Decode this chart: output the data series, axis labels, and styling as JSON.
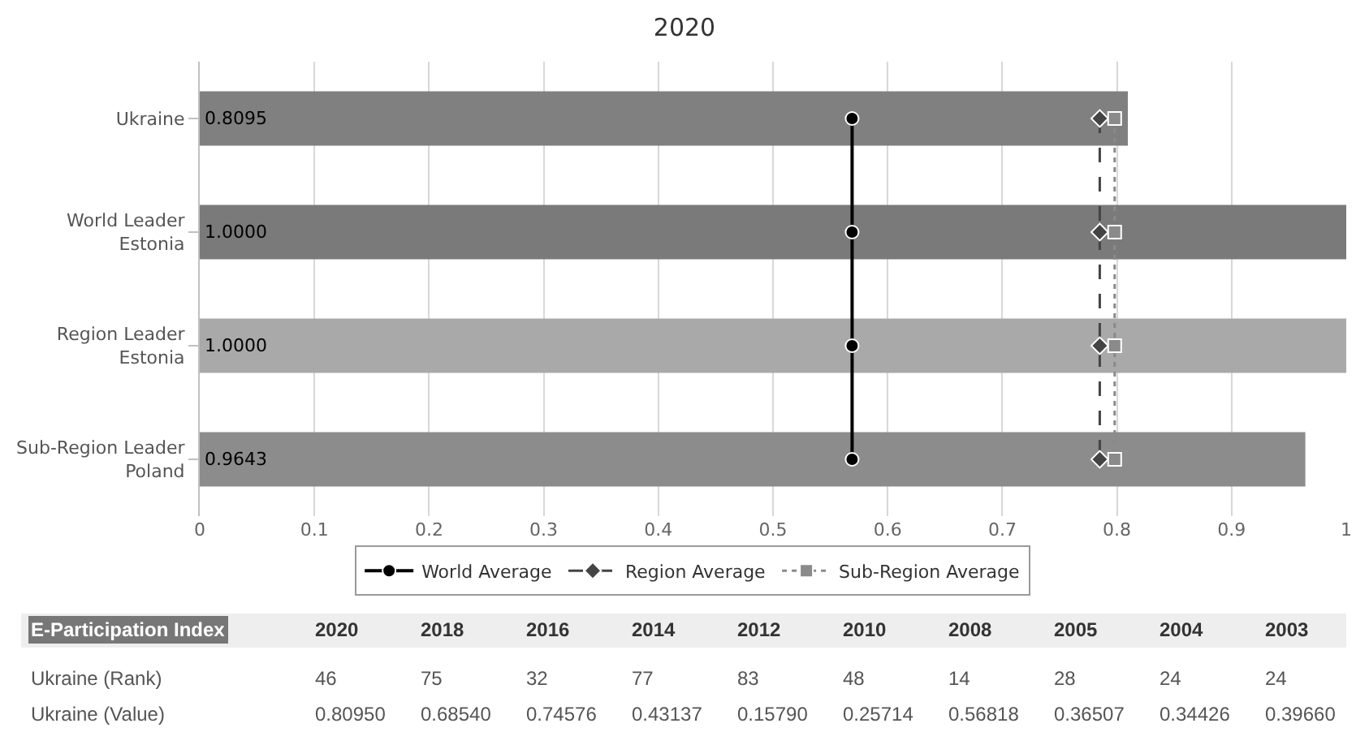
{
  "chart_data": {
    "type": "bar",
    "orientation": "horizontal",
    "title": "2020",
    "categories": [
      "Ukraine",
      "World Leader\nEstonia",
      "Region Leader\nEstonia",
      "Sub-Region Leader\nPoland"
    ],
    "series": [
      {
        "colors": [
          "#808080",
          "#7a7a7a",
          "#a9a9a9",
          "#8c8c8c"
        ],
        "values": [
          0.8095,
          1.0,
          1.0,
          0.9643
        ],
        "value_labels": [
          "0.8095",
          "1.0000",
          "1.0000",
          "0.9643"
        ]
      },
      {
        "type": "line",
        "name": "World Average",
        "color": "#000000",
        "values": [
          0.569,
          0.569,
          0.569,
          0.569
        ],
        "marker": "circle",
        "line_style": "solid"
      },
      {
        "type": "line",
        "name": "Region Average",
        "color": "#444444",
        "values": [
          0.785,
          0.785,
          0.785,
          0.785
        ],
        "marker": "diamond",
        "line_style": "dashed"
      },
      {
        "type": "line",
        "name": "Sub-Region Average",
        "color": "#8a8a8a",
        "values": [
          0.798,
          0.798,
          0.798,
          0.798
        ],
        "marker": "square",
        "line_style": "dotted"
      }
    ],
    "xlim": [
      0,
      1
    ],
    "xticks": [
      0,
      0.1,
      0.2,
      0.3,
      0.4,
      0.5,
      0.6,
      0.7,
      0.8,
      0.9,
      1
    ],
    "grid": "x",
    "legend": "bottom",
    "annotations": [
      "E-Participation Index",
      "2020",
      "2018",
      "2016",
      "2014",
      "2012",
      "2010",
      "2008",
      "2005",
      "2004",
      "2003",
      "Ukraine (Rank)",
      "46",
      "75",
      "32",
      "77",
      "83",
      "48",
      "14",
      "28",
      "24",
      "24",
      "Ukraine (Value)",
      "0.80950",
      "0.68540",
      "0.74576",
      "0.43137",
      "0.15790",
      "0.25714",
      "0.56818",
      "0.36507",
      "0.34426",
      "0.39660"
    ]
  }
}
